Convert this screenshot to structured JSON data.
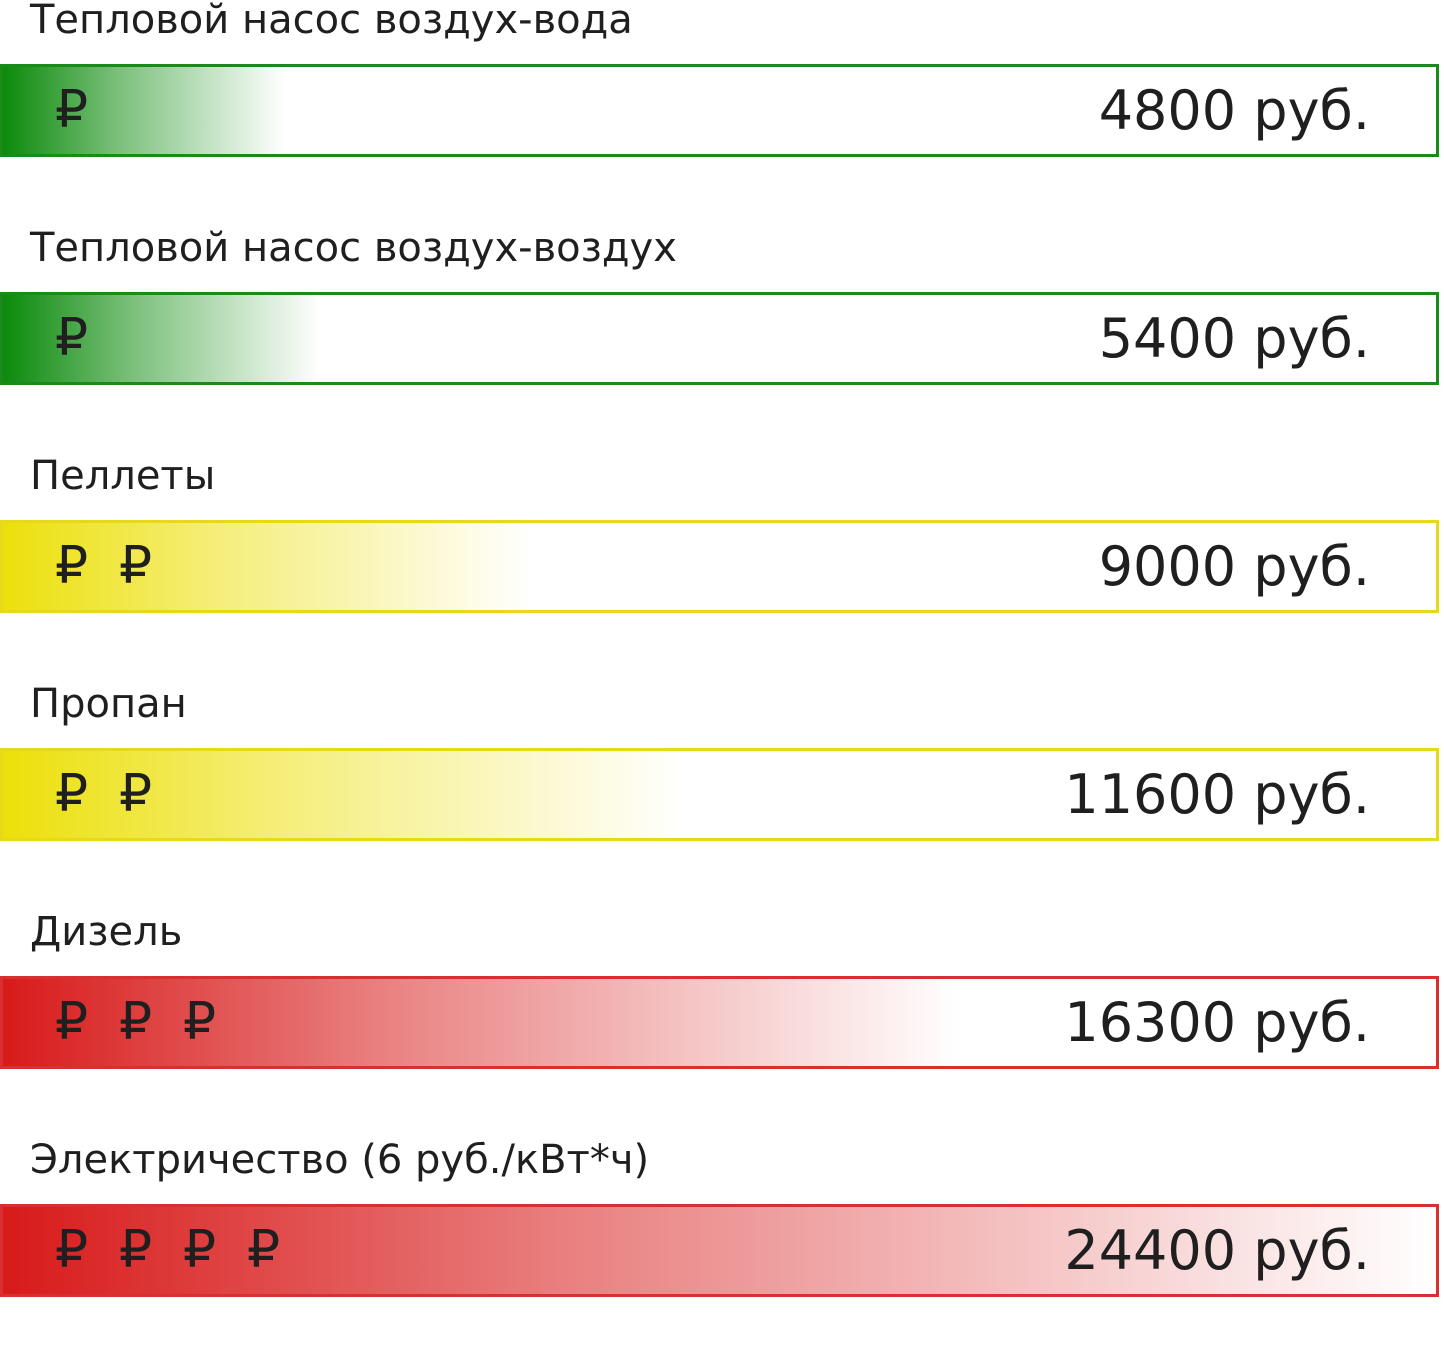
{
  "chart_data": {
    "type": "bar",
    "categories": [
      "Тепловой насос воздух-вода",
      "Тепловой насос воздух-воздух",
      "Пеллеты",
      "Пропан",
      "Дизель",
      "Электричество (6 руб./кВт*ч)"
    ],
    "values": [
      4800,
      5400,
      9000,
      11600,
      16300,
      24400
    ],
    "value_labels": [
      "4800 руб.",
      "5400 руб.",
      "9000 руб.",
      "11600 руб.",
      "16300 руб.",
      "24400 руб."
    ],
    "ruble_counts": [
      1,
      1,
      2,
      2,
      3,
      4
    ],
    "ruble_symbol": "₽",
    "colors": [
      "#0b8a0b",
      "#0b8a0b",
      "#ece00a",
      "#ece00a",
      "#d81a1a",
      "#d81a1a"
    ],
    "border_colors": [
      "#1a8a1a",
      "#1a8a1a",
      "#e8d81a",
      "#e8d81a",
      "#d83030",
      "#d83030"
    ],
    "xlim": [
      0,
      24400
    ]
  }
}
